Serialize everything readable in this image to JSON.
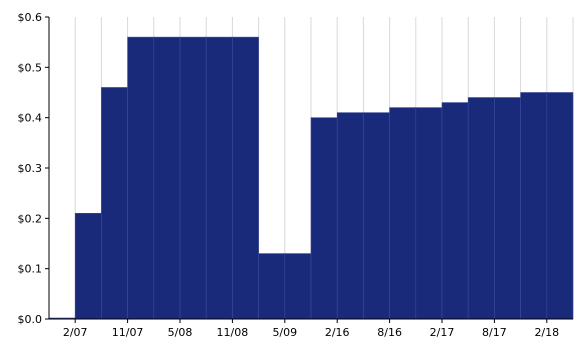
{
  "chart_data": {
    "type": "bar",
    "title": "",
    "xlabel": "",
    "ylabel": "",
    "ylim": [
      0,
      0.6
    ],
    "yticks": [
      0,
      0.1,
      0.2,
      0.3,
      0.4,
      0.5,
      0.6
    ],
    "ytick_labels": [
      "$0.0",
      "$0.1",
      "$0.2",
      "$0.3",
      "$0.4",
      "$0.5",
      "$0.6"
    ],
    "xtick_labels": [
      "2/07",
      "11/07",
      "5/08",
      "11/08",
      "5/09",
      "2/16",
      "8/16",
      "2/17",
      "8/17",
      "2/18"
    ],
    "grid": "vertical",
    "bar_color": "#1a2a7a",
    "values": [
      0.0,
      0.21,
      0.46,
      0.56,
      0.56,
      0.56,
      0.56,
      0.56,
      0.13,
      0.13,
      0.4,
      0.41,
      0.41,
      0.42,
      0.42,
      0.43,
      0.44,
      0.44,
      0.45,
      0.45
    ]
  }
}
